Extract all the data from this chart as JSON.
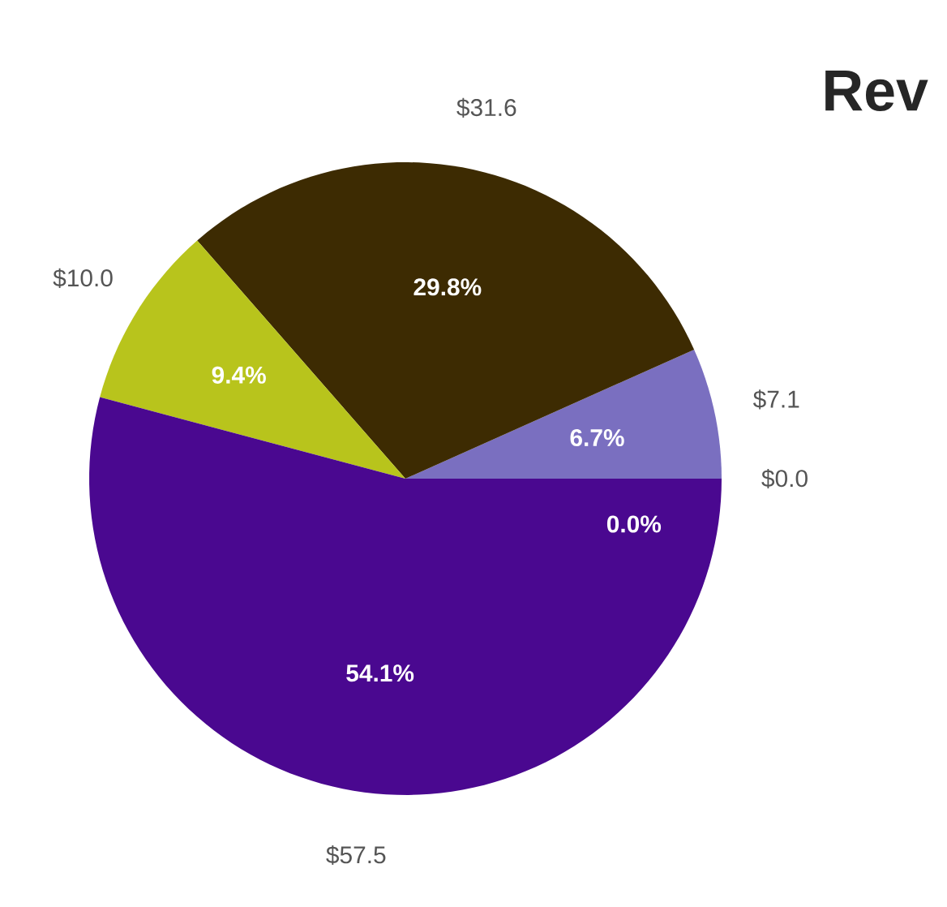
{
  "chart_data": {
    "type": "pie",
    "title": "Rev",
    "categories": [
      null,
      null,
      null,
      null,
      null
    ],
    "values": [
      7.1,
      31.6,
      10.0,
      57.5,
      0.0
    ],
    "colors": [
      "#7a6fc0",
      "#3d2b02",
      "#b8c41c",
      "#4a0890",
      "#9a8ad0"
    ],
    "value_labels": [
      "$7.1",
      "$31.6",
      "$10.0",
      "$57.5",
      "$0.0"
    ],
    "annotations": [
      "6.7%",
      "29.8%",
      "9.4%",
      "54.1%",
      "0.0%"
    ]
  }
}
